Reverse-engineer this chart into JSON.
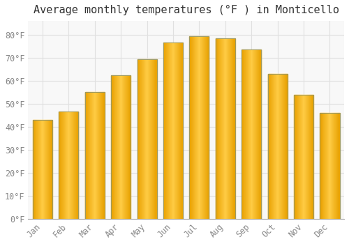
{
  "title": "Average monthly temperatures (°F ) in Monticello",
  "months": [
    "Jan",
    "Feb",
    "Mar",
    "Apr",
    "May",
    "Jun",
    "Jul",
    "Aug",
    "Sep",
    "Oct",
    "Nov",
    "Dec"
  ],
  "values": [
    43,
    46.5,
    55,
    62.5,
    69.5,
    76.5,
    79.5,
    78.5,
    73.5,
    63,
    54,
    46
  ],
  "bar_color_left": "#F5A000",
  "bar_color_center": "#FFCC44",
  "bar_color_right": "#F5A000",
  "bar_edge_color": "#999966",
  "background_color": "#FFFFFF",
  "plot_bg_color": "#F8F8F8",
  "grid_color": "#E0E0E0",
  "ytick_labels": [
    "0°F",
    "10°F",
    "20°F",
    "30°F",
    "40°F",
    "50°F",
    "60°F",
    "70°F",
    "80°F"
  ],
  "ytick_values": [
    0,
    10,
    20,
    30,
    40,
    50,
    60,
    70,
    80
  ],
  "ylim": [
    0,
    86
  ],
  "title_fontsize": 11,
  "tick_fontsize": 8.5,
  "tick_font": "monospace"
}
